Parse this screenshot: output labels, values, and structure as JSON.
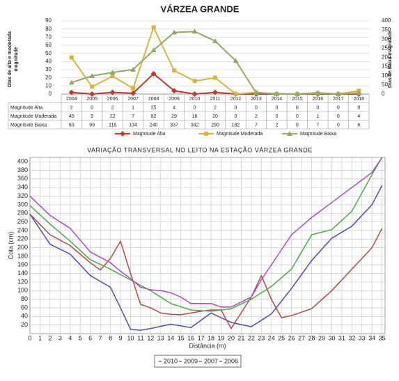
{
  "chart_data": [
    {
      "type": "line",
      "title": "VÁRZEA GRANDE",
      "categories": [
        "2004",
        "2005",
        "2006",
        "2007",
        "2008",
        "2009",
        "2010",
        "2011",
        "2012",
        "2013",
        "2014",
        "2015",
        "2016",
        "2017",
        "2018"
      ],
      "ylabel": [
        "Dias de alta e moderada",
        "magnitude"
      ],
      "y2label": "Dias de baixa magnitude",
      "ylim": [
        0,
        90
      ],
      "yticks": [
        0,
        10,
        20,
        30,
        40,
        50,
        60,
        70,
        80,
        90
      ],
      "y2lim": [
        0,
        400
      ],
      "y2ticks": [
        0,
        50,
        100,
        150,
        200,
        250,
        300,
        350,
        400
      ],
      "grid": true,
      "data_table": true,
      "series": [
        {
          "name": "Magnitude Alta",
          "color": "#c0392b",
          "marker": "diamond",
          "axis": "y",
          "values": [
            2,
            0,
            2,
            1,
            25,
            4,
            0,
            2,
            0,
            0,
            0,
            0,
            0,
            0,
            0
          ]
        },
        {
          "name": "Magnitude Moderada",
          "color": "#d9b43c",
          "marker": "square",
          "axis": "y",
          "values": [
            45,
            9,
            22,
            7,
            82,
            29,
            16,
            20,
            0,
            2,
            0,
            0,
            1,
            0,
            4
          ]
        },
        {
          "name": "Magnitude Baixa",
          "color": "#93a863",
          "marker": "triangle",
          "axis": "y2",
          "values": [
            63,
            99,
            118,
            134,
            240,
            337,
            342,
            290,
            182,
            7,
            2,
            0,
            7,
            0,
            6
          ]
        }
      ]
    },
    {
      "type": "line",
      "title": "VARIAÇÃO TRANSVERSAL NO LEITO NA ESTAÇÃO VÁRZEA GRANDE",
      "xlabel": "Distância (m)",
      "ylabel": "Cota (cm)",
      "xlim": [
        0,
        35.3
      ],
      "xticks": [
        0,
        1,
        2,
        3,
        4,
        5,
        6,
        7,
        8,
        9,
        10,
        11,
        12,
        13,
        14,
        15,
        16,
        17,
        18,
        19,
        20,
        21,
        22,
        23,
        24,
        25,
        26,
        27,
        28,
        29,
        30,
        31,
        32,
        33,
        34,
        35
      ],
      "ylim": [
        0,
        410
      ],
      "yticks": [
        20,
        40,
        60,
        80,
        100,
        120,
        140,
        160,
        180,
        200,
        220,
        240,
        260,
        280,
        300,
        320,
        340,
        360,
        380,
        400
      ],
      "grid": true,
      "series": [
        {
          "name": "2010",
          "color": "#4a4ab8",
          "x": [
            0,
            2,
            4,
            6,
            8,
            9,
            10,
            11,
            12,
            14,
            16,
            18,
            20,
            22,
            24,
            26,
            28,
            30,
            32,
            34,
            35
          ],
          "values": [
            278,
            208,
            185,
            135,
            108,
            60,
            10,
            8,
            12,
            22,
            14,
            48,
            26,
            16,
            46,
            105,
            170,
            222,
            250,
            300,
            345
          ]
        },
        {
          "name": "2009",
          "color": "#b04a48",
          "x": [
            0,
            2,
            4,
            6,
            7,
            8,
            9,
            10,
            11,
            12,
            13,
            14,
            15,
            16,
            17,
            18,
            19,
            20,
            22,
            23,
            24,
            25,
            26,
            28,
            30,
            32,
            34,
            35
          ],
          "values": [
            278,
            230,
            205,
            165,
            148,
            175,
            215,
            140,
            68,
            60,
            48,
            45,
            44,
            48,
            52,
            55,
            55,
            12,
            85,
            135,
            80,
            37,
            42,
            58,
            100,
            150,
            200,
            245
          ]
        },
        {
          "name": "2007",
          "color": "#4aaa44",
          "x": [
            0,
            2,
            4,
            6,
            8,
            10,
            12,
            14,
            16,
            18,
            20,
            22,
            24,
            26,
            28,
            30,
            32,
            34,
            35
          ],
          "values": [
            298,
            255,
            215,
            172,
            150,
            125,
            100,
            70,
            55,
            52,
            58,
            80,
            110,
            150,
            230,
            242,
            285,
            370,
            410
          ]
        },
        {
          "name": "2006",
          "color": "#b048c0",
          "x": [
            0,
            2,
            4,
            6,
            8,
            9,
            10,
            11,
            12,
            13,
            14,
            15,
            16,
            18,
            19,
            20,
            22,
            23,
            24,
            26,
            28,
            30,
            32,
            34,
            35
          ],
          "values": [
            320,
            275,
            245,
            190,
            165,
            145,
            128,
            108,
            102,
            100,
            95,
            85,
            70,
            70,
            62,
            62,
            85,
            125,
            160,
            230,
            270,
            305,
            340,
            375,
            410
          ]
        }
      ]
    }
  ]
}
